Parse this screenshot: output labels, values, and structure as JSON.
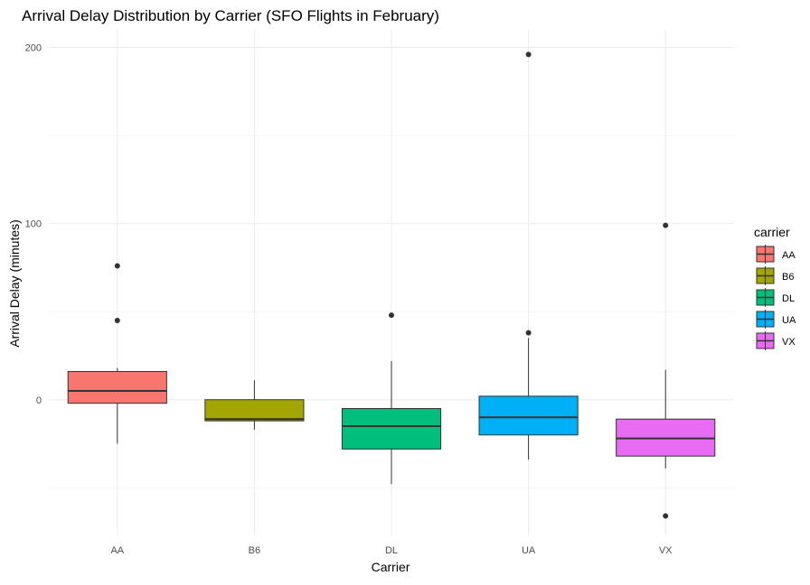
{
  "chart_data": {
    "type": "boxplot",
    "title": "Arrival Delay Distribution by Carrier (SFO Flights in February)",
    "xlabel": "Carrier",
    "ylabel": "Arrival Delay (minutes)",
    "ylim": [
      -77,
      210
    ],
    "y_ticks": [
      0,
      100,
      200
    ],
    "grid": true,
    "legend": {
      "title": "carrier",
      "position": "right"
    },
    "categories": [
      "AA",
      "B6",
      "DL",
      "UA",
      "VX"
    ],
    "series": [
      {
        "name": "AA",
        "color": "#F8766D",
        "whisker_low": -25,
        "q1": -2,
        "median": 5,
        "q3": 16,
        "whisker_high": 18,
        "outliers": [
          45,
          76
        ]
      },
      {
        "name": "B6",
        "color": "#A3A500",
        "whisker_low": -17,
        "q1": -12,
        "median": -11,
        "q3": 0,
        "whisker_high": 11,
        "outliers": []
      },
      {
        "name": "DL",
        "color": "#00BF7D",
        "whisker_low": -48,
        "q1": -28,
        "median": -15,
        "q3": -5,
        "whisker_high": 22,
        "outliers": [
          48
        ]
      },
      {
        "name": "UA",
        "color": "#00B0F6",
        "whisker_low": -34,
        "q1": -20,
        "median": -10,
        "q3": 2,
        "whisker_high": 35,
        "outliers": [
          38,
          196
        ]
      },
      {
        "name": "VX",
        "color": "#E76BF3",
        "whisker_low": -39,
        "q1": -32,
        "median": -22,
        "q3": -11,
        "whisker_high": 17,
        "outliers": [
          99,
          -66
        ]
      }
    ]
  }
}
